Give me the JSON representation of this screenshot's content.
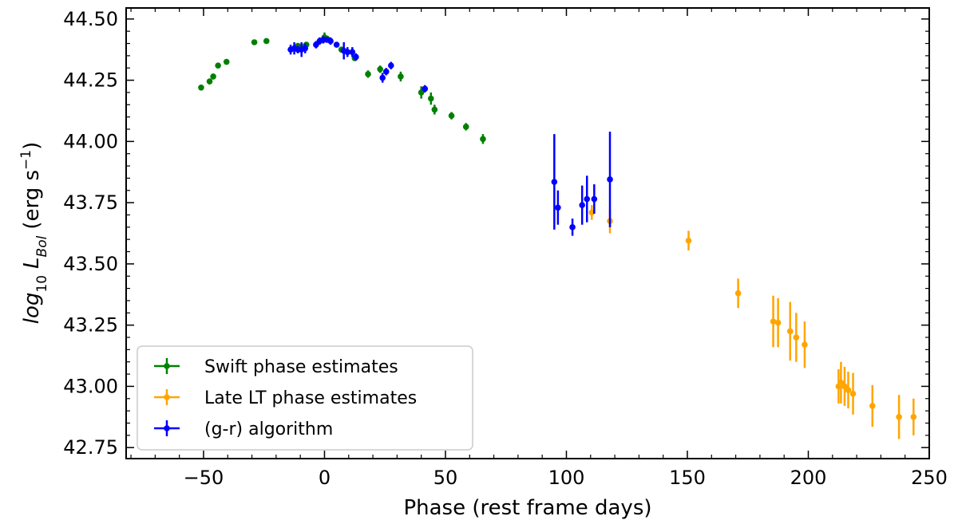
{
  "chart_data": {
    "type": "scatter",
    "title": "",
    "xlabel": "Phase (rest frame days)",
    "ylabel": {
      "prefix": "log",
      "log_sub": "10",
      "L": "L",
      "L_sub": "Bol",
      "units": "(erg s",
      "exp": "−1",
      "close": ")"
    },
    "xlim": [
      -82,
      250
    ],
    "ylim": [
      42.705,
      44.545
    ],
    "xticks": [
      -50,
      0,
      50,
      100,
      150,
      200,
      250
    ],
    "yticks": [
      42.75,
      43.0,
      43.25,
      43.5,
      43.75,
      44.0,
      44.25,
      44.5
    ],
    "xtick_labels": [
      "−50",
      "0",
      "50",
      "100",
      "150",
      "200",
      "250"
    ],
    "ytick_labels": [
      "42.75",
      "43.00",
      "43.25",
      "43.50",
      "43.75",
      "44.00",
      "44.25",
      "44.50"
    ],
    "legend": {
      "location": "lower-left",
      "entries": [
        {
          "label": "Swift phase estimates",
          "color": "#008000"
        },
        {
          "label": "Late LT phase estimates",
          "color": "#FFA500"
        },
        {
          "label": "(g-r) algorithm",
          "color": "#0000FF"
        }
      ]
    },
    "series": [
      {
        "name": "Swift phase estimates",
        "color": "#008000",
        "points": [
          {
            "x": -51,
            "y": 44.22,
            "yerr": 0.01
          },
          {
            "x": -47.5,
            "y": 44.245,
            "yerr": 0.012
          },
          {
            "x": -46,
            "y": 44.265,
            "yerr": 0.012
          },
          {
            "x": -44,
            "y": 44.31,
            "yerr": 0.01
          },
          {
            "x": -40.5,
            "y": 44.325,
            "yerr": 0.01
          },
          {
            "x": -29,
            "y": 44.405,
            "yerr": 0.01
          },
          {
            "x": -24,
            "y": 44.41,
            "yerr": 0.01
          },
          {
            "x": -11,
            "y": 44.39,
            "yerr": 0.01
          },
          {
            "x": -8,
            "y": 44.39,
            "yerr": 0.01
          },
          {
            "x": -7.5,
            "y": 44.395,
            "yerr": 0.01
          },
          {
            "x": 0,
            "y": 44.425,
            "yerr": 0.02
          },
          {
            "x": 1,
            "y": 44.42,
            "yerr": 0.01
          },
          {
            "x": 7,
            "y": 44.375,
            "yerr": 0.012
          },
          {
            "x": 12.5,
            "y": 44.34,
            "yerr": 0.01
          },
          {
            "x": 18,
            "y": 44.275,
            "yerr": 0.015
          },
          {
            "x": 23,
            "y": 44.295,
            "yerr": 0.015
          },
          {
            "x": 31.5,
            "y": 44.265,
            "yerr": 0.02
          },
          {
            "x": 40,
            "y": 44.2,
            "yerr": 0.025
          },
          {
            "x": 44,
            "y": 44.175,
            "yerr": 0.025
          },
          {
            "x": 45.5,
            "y": 44.13,
            "yerr": 0.02
          },
          {
            "x": 52.5,
            "y": 44.105,
            "yerr": 0.015
          },
          {
            "x": 58.5,
            "y": 44.06,
            "yerr": 0.015
          },
          {
            "x": 65.5,
            "y": 44.01,
            "yerr": 0.02
          }
        ]
      },
      {
        "name": "Late LT phase estimates",
        "color": "#FFA500",
        "points": [
          {
            "x": 110.5,
            "y": 43.71,
            "yerr": 0.03
          },
          {
            "x": 118,
            "y": 43.675,
            "yerr": 0.05
          },
          {
            "x": 150.5,
            "y": 43.595,
            "yerr": 0.04
          },
          {
            "x": 171,
            "y": 43.38,
            "yerr": 0.06
          },
          {
            "x": 185.5,
            "y": 43.265,
            "yerr": 0.105
          },
          {
            "x": 187.5,
            "y": 43.26,
            "yerr": 0.1
          },
          {
            "x": 192.5,
            "y": 43.225,
            "yerr": 0.12
          },
          {
            "x": 195,
            "y": 43.2,
            "yerr": 0.1
          },
          {
            "x": 198.5,
            "y": 43.17,
            "yerr": 0.095
          },
          {
            "x": 212.5,
            "y": 43.0,
            "yerr": 0.07
          },
          {
            "x": 213.5,
            "y": 43.015,
            "yerr": 0.085
          },
          {
            "x": 215,
            "y": 43.0,
            "yerr": 0.08
          },
          {
            "x": 216.5,
            "y": 42.985,
            "yerr": 0.075
          },
          {
            "x": 218.5,
            "y": 42.97,
            "yerr": 0.085
          },
          {
            "x": 226.5,
            "y": 42.92,
            "yerr": 0.085
          },
          {
            "x": 237.5,
            "y": 42.875,
            "yerr": 0.09
          },
          {
            "x": 243.5,
            "y": 42.875,
            "yerr": 0.075
          }
        ]
      },
      {
        "name": "(g-r) algorithm",
        "color": "#0000FF",
        "points": [
          {
            "x": -14,
            "y": 44.375,
            "yerr": 0.02
          },
          {
            "x": -12.5,
            "y": 44.38,
            "yerr": 0.025
          },
          {
            "x": -11,
            "y": 44.375,
            "yerr": 0.015
          },
          {
            "x": -9.5,
            "y": 44.375,
            "yerr": 0.03
          },
          {
            "x": -8,
            "y": 44.38,
            "yerr": 0.02
          },
          {
            "x": -3.5,
            "y": 44.395,
            "yerr": 0.015
          },
          {
            "x": -2,
            "y": 44.41,
            "yerr": 0.015
          },
          {
            "x": -0.5,
            "y": 44.415,
            "yerr": 0.015
          },
          {
            "x": 1,
            "y": 44.415,
            "yerr": 0.01
          },
          {
            "x": 2.5,
            "y": 44.41,
            "yerr": 0.015
          },
          {
            "x": 5,
            "y": 44.395,
            "yerr": 0.01
          },
          {
            "x": 8,
            "y": 44.37,
            "yerr": 0.035
          },
          {
            "x": 9.5,
            "y": 44.365,
            "yerr": 0.02
          },
          {
            "x": 11.5,
            "y": 44.365,
            "yerr": 0.02
          },
          {
            "x": 13,
            "y": 44.345,
            "yerr": 0.015
          },
          {
            "x": 24,
            "y": 44.26,
            "yerr": 0.02
          },
          {
            "x": 25.5,
            "y": 44.285,
            "yerr": 0.015
          },
          {
            "x": 27.5,
            "y": 44.31,
            "yerr": 0.015
          },
          {
            "x": 41.5,
            "y": 44.215,
            "yerr": 0.015
          },
          {
            "x": 95,
            "y": 43.835,
            "yerr": 0.195
          },
          {
            "x": 96.5,
            "y": 43.73,
            "yerr": 0.07
          },
          {
            "x": 102.5,
            "y": 43.65,
            "yerr": 0.035
          },
          {
            "x": 106.5,
            "y": 43.74,
            "yerr": 0.08
          },
          {
            "x": 108.5,
            "y": 43.765,
            "yerr": 0.095
          },
          {
            "x": 111.5,
            "y": 43.765,
            "yerr": 0.06
          },
          {
            "x": 118,
            "y": 43.845,
            "yerr": 0.195
          }
        ]
      }
    ]
  }
}
